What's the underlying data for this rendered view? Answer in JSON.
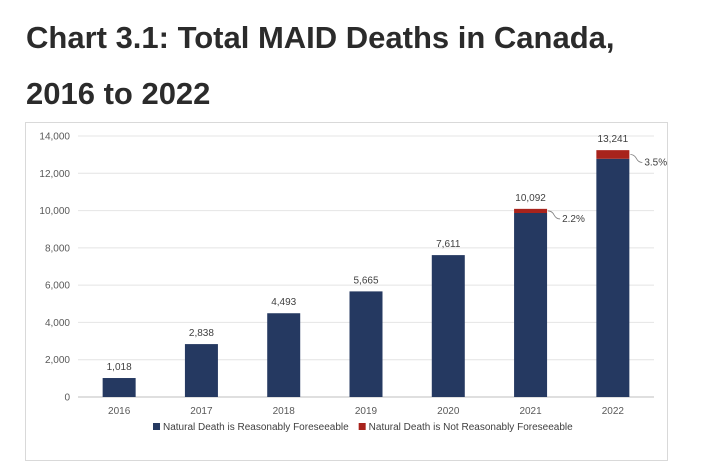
{
  "title": "Chart 3.1: Total MAID Deaths in Canada, 2016 to 2022",
  "chart_data": {
    "type": "bar",
    "stacked": true,
    "title": "Chart 3.1: Total MAID Deaths in Canada, 2016 to 2022",
    "xlabel": "",
    "ylabel": "",
    "ylim": [
      0,
      14000
    ],
    "yticks": [
      "0",
      "2,000",
      "4,000",
      "6,000",
      "8,000",
      "10,000",
      "12,000",
      "14,000"
    ],
    "ytick_values": [
      0,
      2000,
      4000,
      6000,
      8000,
      10000,
      12000,
      14000
    ],
    "grid": true,
    "legend_position": "bottom",
    "categories": [
      "2016",
      "2017",
      "2018",
      "2019",
      "2020",
      "2021",
      "2022"
    ],
    "totals": [
      1018,
      2838,
      4493,
      5665,
      7611,
      10092,
      13241
    ],
    "total_labels": [
      "1,018",
      "2,838",
      "4,493",
      "5,665",
      "7,611",
      "10,092",
      "13,241"
    ],
    "series": [
      {
        "name": "Natural Death is Reasonably Foreseeable",
        "color": "#253961",
        "values": [
          1018,
          2838,
          4493,
          5665,
          7611,
          9870,
          12778
        ]
      },
      {
        "name": "Natural Death is Not Reasonably Foreseeable",
        "color": "#a8231c",
        "values": [
          0,
          0,
          0,
          0,
          0,
          222,
          463
        ]
      }
    ],
    "annotations": [
      {
        "category": "2021",
        "text": "2.2%"
      },
      {
        "category": "2022",
        "text": "3.5%"
      }
    ]
  }
}
